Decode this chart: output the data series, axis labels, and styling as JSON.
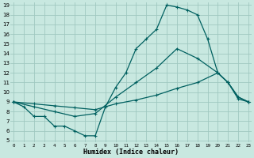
{
  "xlabel": "Humidex (Indice chaleur)",
  "xlim": [
    0,
    23
  ],
  "ylim": [
    5,
    19
  ],
  "yticks": [
    5,
    6,
    7,
    8,
    9,
    10,
    11,
    12,
    13,
    14,
    15,
    16,
    17,
    18,
    19
  ],
  "xticks": [
    0,
    1,
    2,
    3,
    4,
    5,
    6,
    7,
    8,
    9,
    10,
    11,
    12,
    13,
    14,
    15,
    16,
    17,
    18,
    19,
    20,
    21,
    22,
    23
  ],
  "bg_color": "#c8e8e0",
  "grid_color": "#a0c8c0",
  "line_color": "#006060",
  "line_width": 0.9,
  "marker": "+",
  "marker_size": 3.5,
  "marker_lw": 0.8,
  "curve1_x": [
    0,
    1,
    2,
    3,
    4,
    5,
    6,
    7,
    8,
    9,
    10,
    11,
    12,
    13,
    14,
    15,
    16,
    17,
    18,
    19,
    20,
    21,
    22,
    23
  ],
  "curve1_y": [
    9.0,
    8.5,
    7.5,
    7.5,
    6.5,
    6.5,
    6.0,
    5.5,
    5.5,
    8.5,
    10.5,
    12.0,
    14.5,
    15.5,
    16.5,
    19.0,
    18.8,
    18.5,
    18.0,
    15.5,
    12.0,
    11.0,
    9.5,
    9.0
  ],
  "curve2_x": [
    0,
    2,
    4,
    6,
    8,
    10,
    12,
    14,
    16,
    18,
    20,
    21,
    22,
    23
  ],
  "curve2_y": [
    9.0,
    8.8,
    8.6,
    8.4,
    8.2,
    8.8,
    9.2,
    9.7,
    10.4,
    11.0,
    12.0,
    11.0,
    9.3,
    9.0
  ],
  "curve3_x": [
    0,
    2,
    4,
    6,
    8,
    10,
    12,
    14,
    16,
    18,
    20,
    21,
    22,
    23
  ],
  "curve3_y": [
    9.0,
    8.5,
    8.0,
    7.5,
    7.8,
    9.5,
    11.0,
    12.5,
    14.5,
    13.5,
    12.0,
    11.0,
    9.5,
    9.0
  ]
}
